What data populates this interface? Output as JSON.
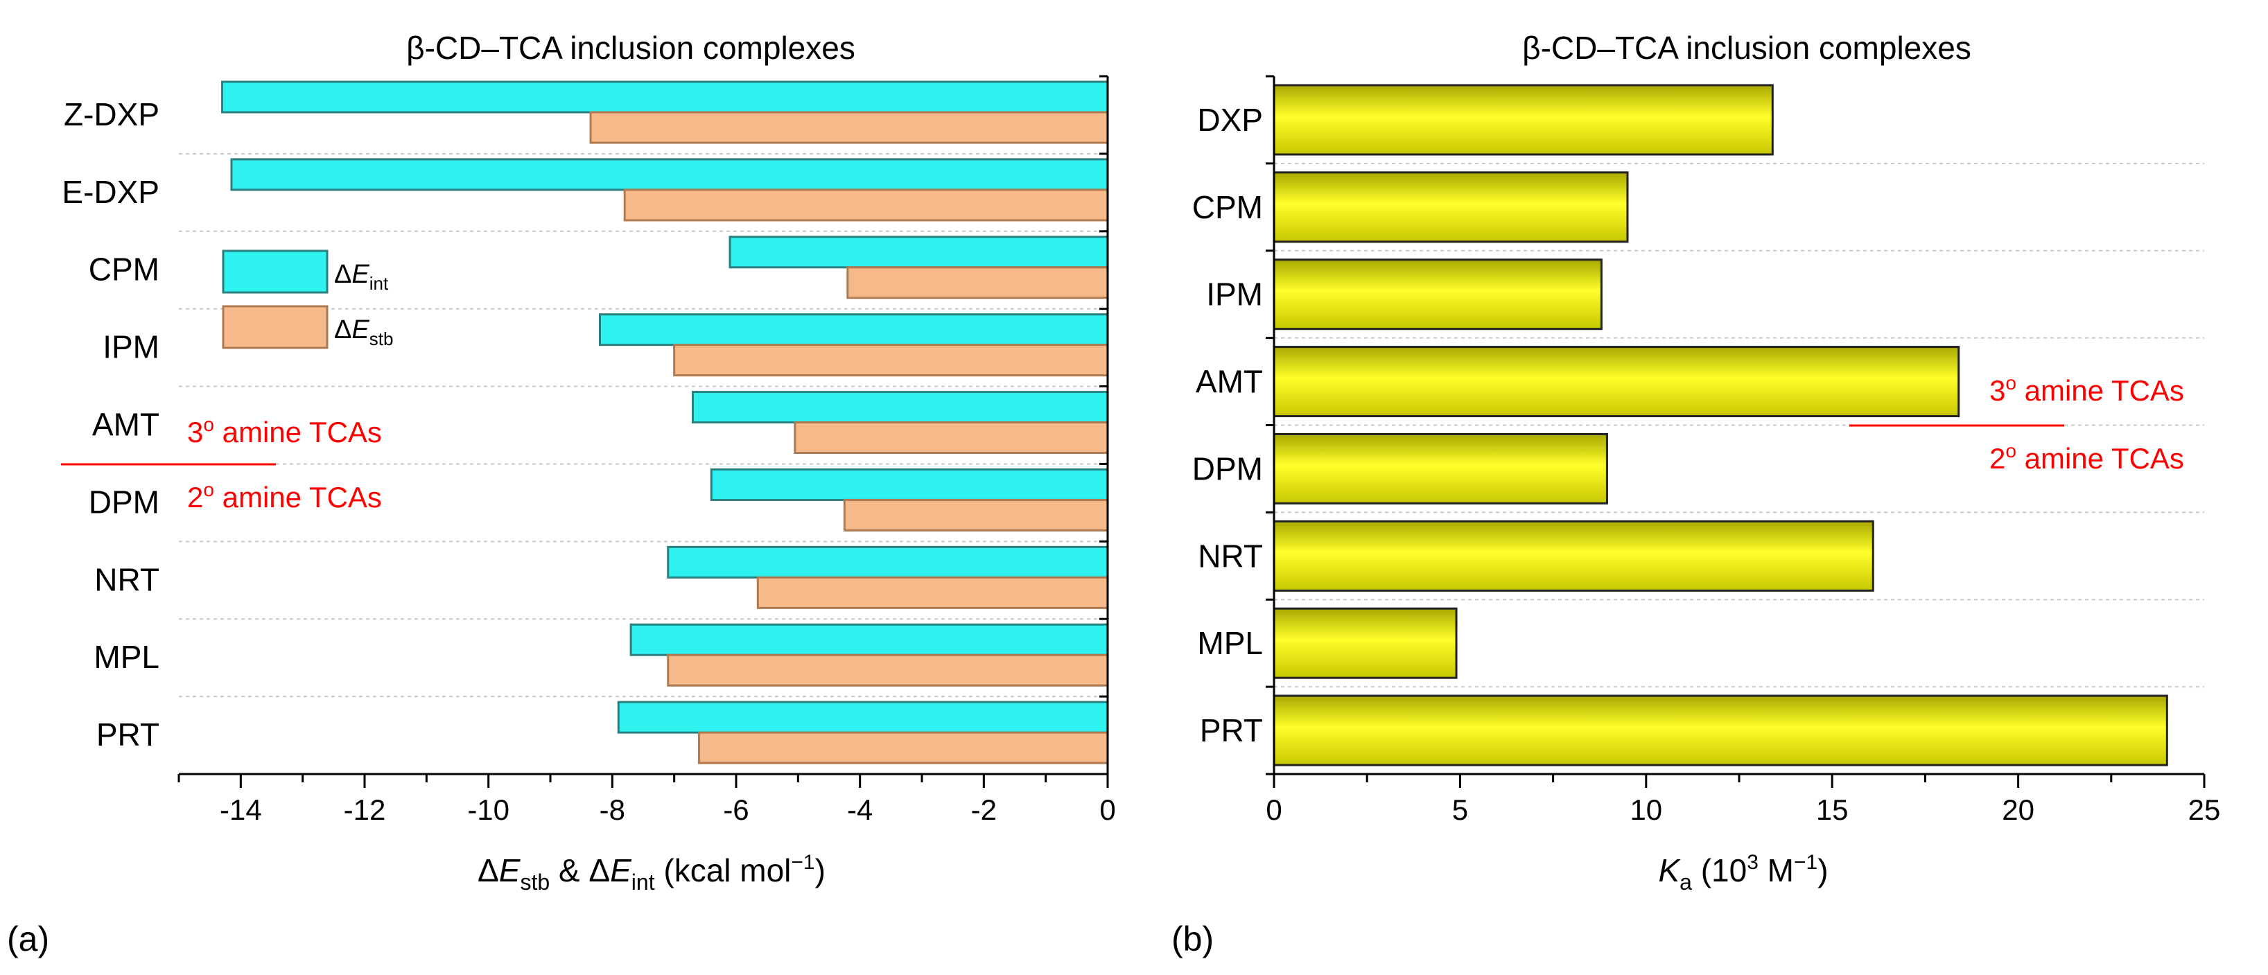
{
  "colors": {
    "int_fill": "#2ef2ef",
    "int_stroke": "#2a7f7f",
    "stb_fill": "#f5b98a",
    "stb_stroke": "#b07a50",
    "ka_fill": "#e8e800",
    "ka_stroke": "#222222",
    "annotation": "#ff0000",
    "grid": "#c8c8c8"
  },
  "chart_data": [
    {
      "panel_label": "(a)",
      "type": "bar",
      "orientation": "horizontal",
      "title": "β-CD–TCA inclusion complexes",
      "categories": [
        "Z-DXP",
        "E-DXP",
        "CPM",
        "IPM",
        "AMT",
        "DPM",
        "NRT",
        "MPL",
        "PRT"
      ],
      "series": [
        {
          "name": "ΔE_int",
          "legend_sym": "Δ",
          "legend_main": "E",
          "legend_sub": "int",
          "values": [
            -14.3,
            -14.15,
            -6.1,
            -8.2,
            -6.7,
            -6.4,
            -7.1,
            -7.7,
            -7.9
          ]
        },
        {
          "name": "ΔE_stb",
          "legend_sym": "Δ",
          "legend_main": "E",
          "legend_sub": "stb",
          "values": [
            -8.35,
            -7.8,
            -4.2,
            -7.0,
            -5.05,
            -4.25,
            -5.65,
            -7.1,
            -6.6
          ]
        }
      ],
      "xlim": [
        -15,
        0
      ],
      "xticks": [
        -14,
        -12,
        -10,
        -8,
        -6,
        -4,
        -2,
        0
      ],
      "xlabel": {
        "p1": "Δ",
        "e1": "E",
        "s1": "stb",
        "p2": " & Δ",
        "e2": "E",
        "s2": "int",
        "p3": " (kcal mol",
        "sup": "−1",
        "p4": ")"
      },
      "legend_position": "upper-left",
      "annotation_top": {
        "main": "3",
        "sup": "o",
        "rest": " amine TCAs"
      },
      "annotation_bottom": {
        "main": "2",
        "sup": "o",
        "rest": " amine TCAs"
      }
    },
    {
      "panel_label": "(b)",
      "type": "bar",
      "orientation": "horizontal",
      "title": "β-CD–TCA inclusion complexes",
      "categories": [
        "DXP",
        "CPM",
        "IPM",
        "AMT",
        "DPM",
        "NRT",
        "MPL",
        "PRT"
      ],
      "series": [
        {
          "name": "Ka",
          "values": [
            13.4,
            9.5,
            8.8,
            18.4,
            8.95,
            16.1,
            4.9,
            24.0
          ]
        }
      ],
      "xlim": [
        0,
        25
      ],
      "xticks": [
        0,
        5,
        10,
        15,
        20,
        25
      ],
      "xlabel": {
        "main": "K",
        "sub": "a",
        "p1": " (10",
        "sup1": "3",
        "p2": " M",
        "sup2": "−1",
        "p3": ")"
      },
      "annotation_top": {
        "main": "3",
        "sup": "o",
        "rest": " amine TCAs"
      },
      "annotation_bottom": {
        "main": "2",
        "sup": "o",
        "rest": " amine TCAs"
      }
    }
  ]
}
